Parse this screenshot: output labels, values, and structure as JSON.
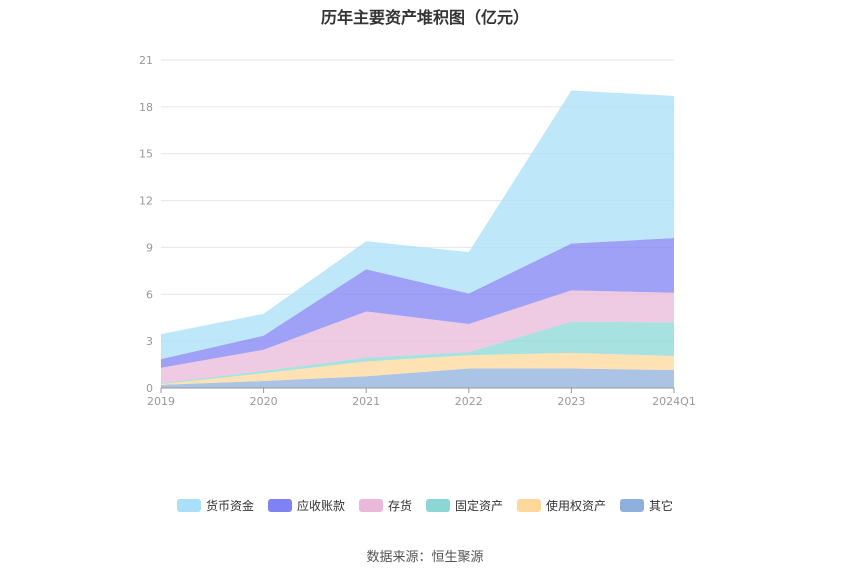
{
  "chart_data": {
    "type": "area",
    "stacked": true,
    "title": "历年主要资产堆积图（亿元）",
    "categories": [
      "2019",
      "2020",
      "2021",
      "2022",
      "2023",
      "2024Q1"
    ],
    "ylim": [
      0,
      21
    ],
    "yticks": [
      "0",
      "3",
      "6",
      "9",
      "12",
      "15",
      "18",
      "21"
    ],
    "series": [
      {
        "name": "其它",
        "color": "#8fb0dc",
        "values": [
          0.2,
          0.45,
          0.75,
          1.25,
          1.25,
          1.15
        ]
      },
      {
        "name": "使用权资产",
        "color": "#fdd89a",
        "values": [
          0.05,
          0.5,
          0.95,
          0.85,
          1.0,
          0.9
        ]
      },
      {
        "name": "固定资产",
        "color": "#8ad7d6",
        "values": [
          0.05,
          0.15,
          0.25,
          0.2,
          2.0,
          2.15
        ]
      },
      {
        "name": "存货",
        "color": "#e9b8da",
        "values": [
          1.0,
          1.35,
          2.95,
          1.8,
          2.0,
          1.9
        ]
      },
      {
        "name": "应收账款",
        "color": "#7f82f3",
        "values": [
          0.55,
          0.9,
          2.7,
          1.95,
          3.0,
          3.5
        ]
      },
      {
        "name": "货币资金",
        "color": "#a9dff8",
        "values": [
          1.6,
          1.4,
          1.8,
          2.65,
          9.8,
          9.1
        ]
      }
    ],
    "legend_order": [
      "货币资金",
      "应收账款",
      "存货",
      "固定资产",
      "使用权资产",
      "其它"
    ],
    "legend_position": "bottom",
    "source": "数据来源：恒生聚源"
  }
}
